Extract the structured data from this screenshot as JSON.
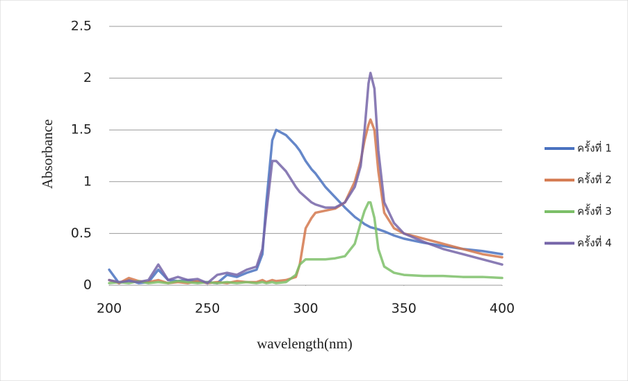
{
  "chart_data": {
    "type": "line",
    "xlabel": "wavelength(nm)",
    "ylabel": "Absorbance",
    "x": [
      200,
      205,
      210,
      215,
      220,
      225,
      230,
      235,
      240,
      245,
      250,
      255,
      260,
      265,
      270,
      275,
      278,
      280,
      283,
      285,
      290,
      295,
      297,
      300,
      303,
      305,
      310,
      315,
      320,
      325,
      328,
      330,
      332,
      333,
      335,
      337,
      340,
      345,
      350,
      360,
      370,
      380,
      390,
      400
    ],
    "series": [
      {
        "name": "ครั้งที่ 1",
        "color": "#4a72c0",
        "values": [
          0.15,
          0.02,
          0.05,
          0.02,
          0.03,
          0.15,
          0.05,
          0.04,
          0.05,
          0.03,
          0.03,
          0.02,
          0.1,
          0.08,
          0.12,
          0.15,
          0.3,
          0.8,
          1.4,
          1.5,
          1.45,
          1.35,
          1.3,
          1.2,
          1.12,
          1.08,
          0.95,
          0.85,
          0.75,
          0.66,
          0.62,
          0.59,
          0.57,
          0.56,
          0.55,
          0.54,
          0.52,
          0.48,
          0.45,
          0.41,
          0.38,
          0.35,
          0.33,
          0.3
        ]
      },
      {
        "name": "ครั้งที่ 2",
        "color": "#d4784e",
        "values": [
          0.05,
          0.02,
          0.07,
          0.04,
          0.03,
          0.05,
          0.02,
          0.03,
          0.02,
          0.04,
          0.02,
          0.03,
          0.02,
          0.04,
          0.03,
          0.03,
          0.05,
          0.03,
          0.05,
          0.04,
          0.05,
          0.08,
          0.2,
          0.55,
          0.65,
          0.7,
          0.72,
          0.74,
          0.8,
          1.0,
          1.2,
          1.4,
          1.55,
          1.6,
          1.5,
          1.1,
          0.7,
          0.55,
          0.5,
          0.45,
          0.4,
          0.35,
          0.3,
          0.27
        ]
      },
      {
        "name": "ครั้งที่ 3",
        "color": "#7cbf68",
        "values": [
          0.02,
          0.03,
          0.02,
          0.04,
          0.02,
          0.03,
          0.02,
          0.04,
          0.03,
          0.02,
          0.03,
          0.02,
          0.03,
          0.02,
          0.03,
          0.02,
          0.03,
          0.02,
          0.03,
          0.02,
          0.03,
          0.1,
          0.2,
          0.25,
          0.25,
          0.25,
          0.25,
          0.26,
          0.28,
          0.4,
          0.6,
          0.72,
          0.8,
          0.8,
          0.65,
          0.35,
          0.18,
          0.12,
          0.1,
          0.09,
          0.09,
          0.08,
          0.08,
          0.07
        ]
      },
      {
        "name": "ครั้งที่ 4",
        "color": "#7565a8",
        "values": [
          0.05,
          0.03,
          0.04,
          0.03,
          0.05,
          0.2,
          0.05,
          0.08,
          0.05,
          0.06,
          0.02,
          0.1,
          0.12,
          0.1,
          0.15,
          0.18,
          0.35,
          0.7,
          1.2,
          1.2,
          1.1,
          0.95,
          0.9,
          0.85,
          0.8,
          0.78,
          0.75,
          0.75,
          0.8,
          0.95,
          1.15,
          1.5,
          1.95,
          2.05,
          1.9,
          1.3,
          0.8,
          0.6,
          0.5,
          0.42,
          0.35,
          0.3,
          0.25,
          0.2
        ]
      }
    ],
    "xlim": [
      200,
      400
    ],
    "xticks": [
      200,
      250,
      300,
      350,
      400
    ],
    "ylim": [
      0,
      2.5
    ],
    "yticks": [
      0,
      0.5,
      1,
      1.5,
      2,
      2.5
    ],
    "grid": true,
    "legend": "right"
  }
}
